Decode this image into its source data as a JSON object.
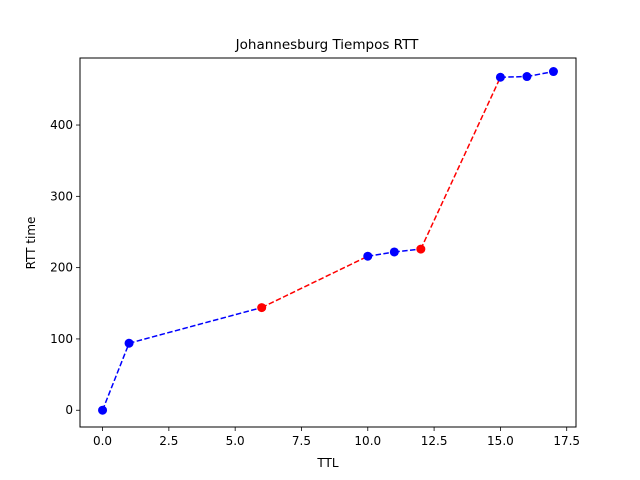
{
  "chart_data": {
    "type": "line",
    "title": "Johannesburg Tiempos RTT",
    "xlabel": "TTL",
    "ylabel": "RTT time",
    "xlim": [
      -0.85,
      17.85
    ],
    "ylim": [
      -23.5,
      494
    ],
    "xticks": [
      0.0,
      2.5,
      5.0,
      7.5,
      10.0,
      12.5,
      15.0,
      17.5
    ],
    "xtick_labels": [
      "0.0",
      "2.5",
      "5.0",
      "7.5",
      "10.0",
      "12.5",
      "15.0",
      "17.5"
    ],
    "yticks": [
      0,
      100,
      200,
      300,
      400
    ],
    "ytick_labels": [
      "0",
      "100",
      "200",
      "300",
      "400"
    ],
    "grid": false,
    "legend": "none",
    "points": [
      {
        "x": 0,
        "y": 0
      },
      {
        "x": 1,
        "y": 94
      },
      {
        "x": 6,
        "y": 144
      },
      {
        "x": 10,
        "y": 216
      },
      {
        "x": 11,
        "y": 222
      },
      {
        "x": 12,
        "y": 226
      },
      {
        "x": 15,
        "y": 467
      },
      {
        "x": 16,
        "y": 468
      },
      {
        "x": 17,
        "y": 475
      }
    ],
    "segments": [
      {
        "from": 0,
        "to": 1,
        "color": "#0000ff"
      },
      {
        "from": 1,
        "to": 2,
        "color": "#0000ff"
      },
      {
        "from": 2,
        "to": 3,
        "color": "#ff0000"
      },
      {
        "from": 3,
        "to": 4,
        "color": "#0000ff"
      },
      {
        "from": 4,
        "to": 5,
        "color": "#0000ff"
      },
      {
        "from": 5,
        "to": 6,
        "color": "#ff0000"
      },
      {
        "from": 6,
        "to": 7,
        "color": "#0000ff"
      },
      {
        "from": 7,
        "to": 8,
        "color": "#0000ff"
      }
    ],
    "marker_colors": [
      "#0000ff",
      "#0000ff",
      "#ff0000",
      "#0000ff",
      "#0000ff",
      "#ff0000",
      "#0000ff",
      "#0000ff",
      "#0000ff"
    ]
  }
}
